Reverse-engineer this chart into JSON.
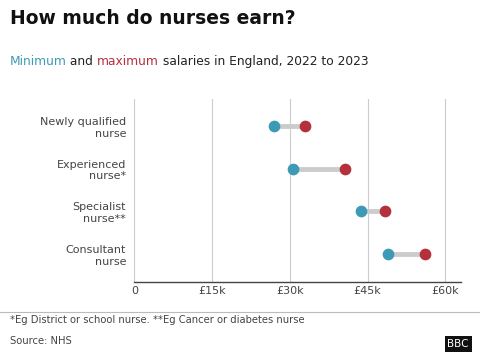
{
  "title": "How much do nurses earn?",
  "subtitle_parts": [
    {
      "text": "Minimum",
      "color": "#3d9ab5"
    },
    {
      "text": " and ",
      "color": "#222222"
    },
    {
      "text": "maximum",
      "color": "#b5303d"
    },
    {
      "text": " salaries in England, 2022 to 2023",
      "color": "#222222"
    }
  ],
  "categories": [
    "Newly qualified\nnurse",
    "Experienced\nnurse*",
    "Specialist\nnurse**",
    "Consultant\nnurse"
  ],
  "min_values": [
    27000,
    30600,
    43700,
    49000
  ],
  "max_values": [
    33000,
    40600,
    48400,
    56100
  ],
  "min_color": "#3d9ab5",
  "max_color": "#b5303d",
  "connector_color": "#cccccc",
  "background_color": "#ffffff",
  "grid_color": "#cccccc",
  "xlim": [
    0,
    63000
  ],
  "xticks": [
    0,
    15000,
    30000,
    45000,
    60000
  ],
  "xtick_labels": [
    "0",
    "£15k",
    "£30k",
    "£45k",
    "£60k"
  ],
  "footnote1": "*Eg District or school nurse. **Eg Cancer or diabetes nurse",
  "footnote2": "Source: NHS",
  "dot_size": 55,
  "connector_linewidth": 3.5
}
